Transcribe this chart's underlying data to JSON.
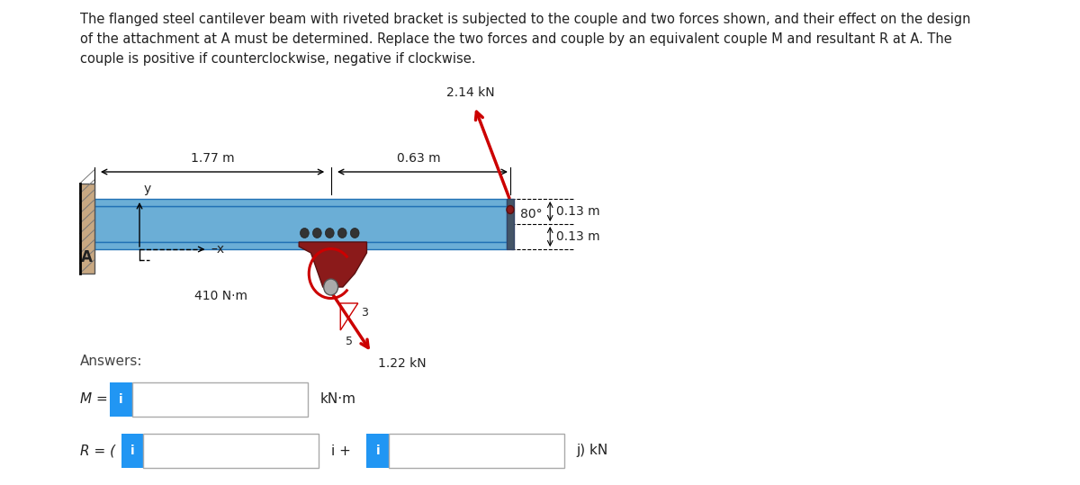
{
  "background_color": "#ffffff",
  "paragraph_text": "The flanged steel cantilever beam with riveted bracket is subjected to the couple and two forces shown, and their effect on the design\nof the attachment at A must be determined. Replace the two forces and couple by an equivalent couple M and resultant R at A. The\ncouple is positive if counterclockwise, negative if clockwise.",
  "paragraph_fontsize": 10.5,
  "answers_label": "Answers:",
  "M_label": "M = ",
  "R_label": "R = (",
  "kNm_label": "kN·m",
  "i_plus_label": "i +",
  "j_kN_label": "j) kN",
  "dim_177_text": "1.77 m",
  "dim_063_text": "0.63 m",
  "dim_013a_text": "0.13 m",
  "dim_013b_text": "0.13 m",
  "force_410_text": "410 N·m",
  "force_214_text": "2.14 kN",
  "force_122_text": "1.22 kN",
  "angle_80_text": "80°",
  "ratio_3_text": "3",
  "ratio_5_text": "5",
  "A_label": "A",
  "y_label": "y",
  "x_label": "–x",
  "beam_color": "#6baed6",
  "beam_dark": "#2171b5",
  "bracket_color": "#8B1A1A",
  "wall_color": "#c8a882",
  "red_color": "#cc0000",
  "black": "#222222"
}
